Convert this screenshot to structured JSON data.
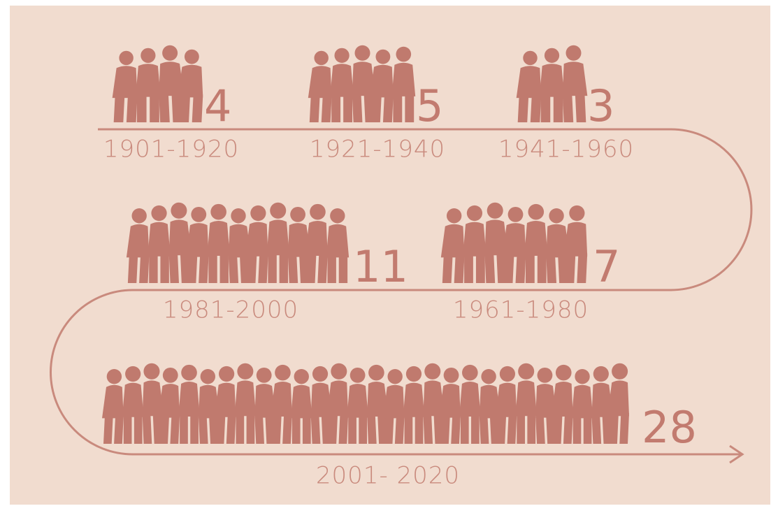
{
  "chart_data": {
    "type": "pictograph",
    "categories": [
      "1901-1920",
      "1921-1940",
      "1941-1960",
      "1961-1980",
      "1981-2000",
      "2001- 2020"
    ],
    "values": [
      4,
      5,
      3,
      7,
      11,
      28
    ],
    "color": "#c07a6e"
  }
}
